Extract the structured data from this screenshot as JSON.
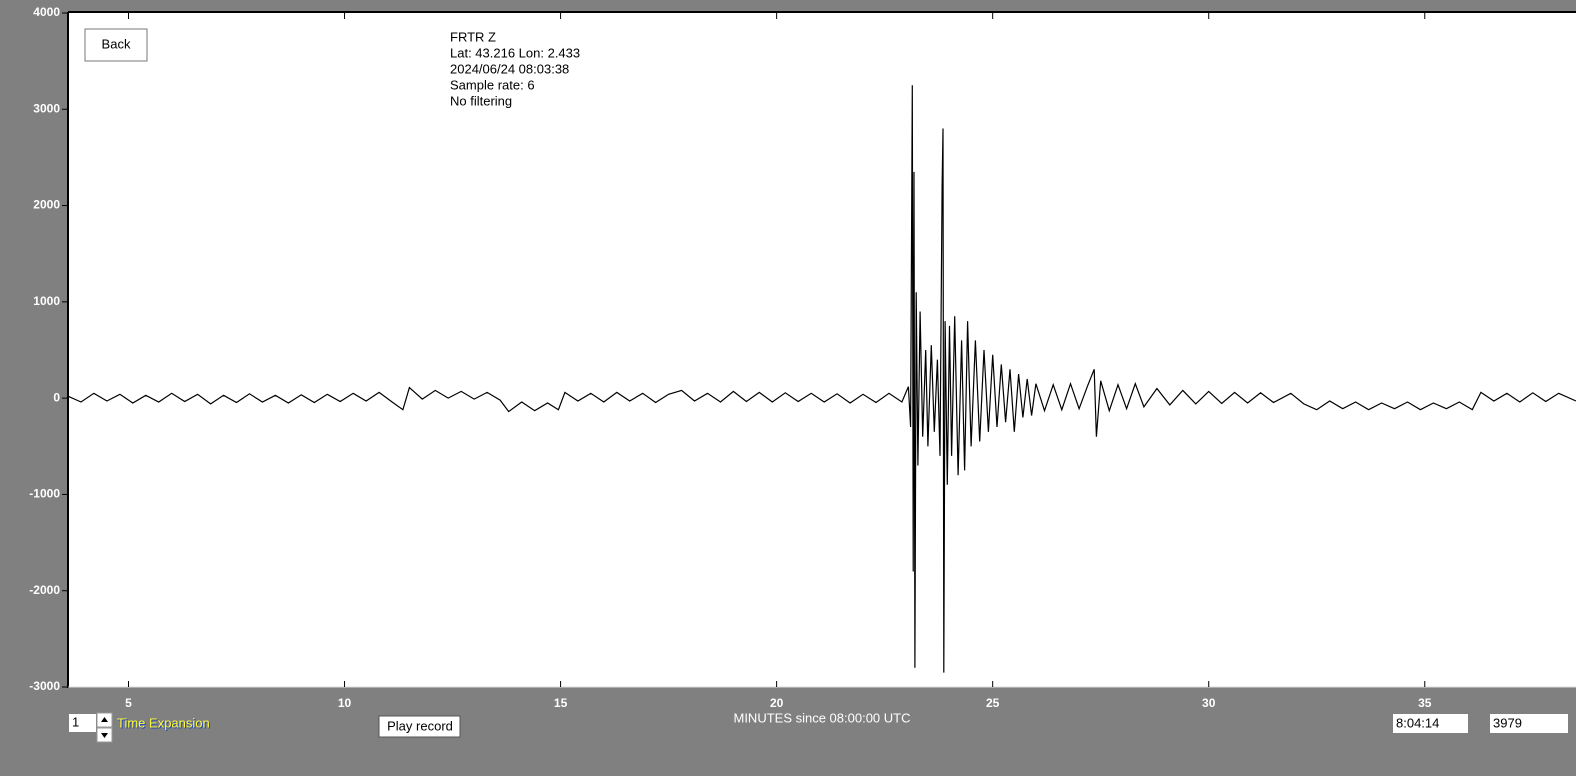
{
  "chart_data": {
    "type": "line",
    "x_label": "MINUTES since 08:00:00 UTC",
    "color": "#000000",
    "xlim": [
      3.6,
      38.5
    ],
    "xticks": [
      5,
      10,
      15,
      20,
      25,
      30,
      35
    ],
    "ylim": [
      -3000,
      4000
    ],
    "yticks": [
      4000,
      3000,
      2000,
      1000,
      0,
      -1000,
      -2000,
      -3000
    ],
    "x": [
      3.6,
      3.9,
      4.2,
      4.5,
      4.8,
      5.1,
      5.4,
      5.7,
      6.0,
      6.3,
      6.6,
      6.9,
      7.2,
      7.5,
      7.8,
      8.1,
      8.4,
      8.7,
      9.0,
      9.3,
      9.6,
      9.9,
      10.2,
      10.5,
      10.8,
      11.1,
      11.35,
      11.5,
      11.8,
      12.1,
      12.4,
      12.7,
      13.0,
      13.3,
      13.6,
      13.8,
      14.1,
      14.4,
      14.7,
      14.95,
      15.1,
      15.4,
      15.7,
      16.0,
      16.3,
      16.6,
      16.9,
      17.2,
      17.5,
      17.8,
      18.1,
      18.4,
      18.7,
      19.0,
      19.3,
      19.6,
      19.9,
      20.2,
      20.5,
      20.8,
      21.1,
      21.4,
      21.7,
      22.0,
      22.3,
      22.6,
      22.9,
      23.05,
      23.1,
      23.14,
      23.16,
      23.18,
      23.2,
      23.23,
      23.27,
      23.32,
      23.38,
      23.45,
      23.5,
      23.58,
      23.65,
      23.72,
      23.78,
      23.83,
      23.85,
      23.87,
      23.9,
      23.95,
      24.0,
      24.05,
      24.12,
      24.2,
      24.28,
      24.35,
      24.42,
      24.5,
      24.6,
      24.7,
      24.8,
      24.9,
      25.0,
      25.1,
      25.2,
      25.3,
      25.4,
      25.5,
      25.6,
      25.7,
      25.8,
      25.9,
      26.0,
      26.2,
      26.4,
      26.6,
      26.8,
      27.0,
      27.2,
      27.35,
      27.4,
      27.5,
      27.7,
      27.9,
      28.1,
      28.3,
      28.5,
      28.8,
      29.1,
      29.4,
      29.7,
      30.0,
      30.3,
      30.6,
      30.9,
      31.2,
      31.5,
      31.9,
      32.2,
      32.5,
      32.8,
      33.1,
      33.4,
      33.7,
      34.0,
      34.3,
      34.6,
      34.9,
      35.2,
      35.5,
      35.8,
      36.1,
      36.3,
      36.6,
      36.9,
      37.2,
      37.5,
      37.8,
      38.1,
      38.5
    ],
    "values": [
      20,
      -40,
      50,
      -30,
      40,
      -50,
      30,
      -40,
      50,
      -35,
      40,
      -60,
      30,
      -45,
      45,
      -40,
      30,
      -50,
      35,
      -45,
      40,
      -35,
      50,
      -30,
      60,
      -40,
      -120,
      110,
      -10,
      80,
      0,
      70,
      -10,
      60,
      -20,
      -140,
      -40,
      -130,
      -50,
      -120,
      60,
      -30,
      50,
      -40,
      60,
      -30,
      50,
      -45,
      40,
      80,
      -30,
      50,
      -40,
      70,
      -35,
      60,
      -40,
      55,
      -35,
      50,
      -40,
      45,
      -50,
      40,
      -45,
      50,
      -40,
      120,
      -300,
      3250,
      -1800,
      2350,
      -2800,
      1100,
      -700,
      900,
      -400,
      500,
      -500,
      550,
      -350,
      400,
      -600,
      2200,
      2800,
      -2850,
      800,
      -900,
      750,
      -600,
      850,
      -800,
      600,
      -750,
      800,
      -500,
      600,
      -450,
      500,
      -350,
      450,
      -300,
      350,
      -250,
      300,
      -350,
      250,
      -200,
      200,
      -180,
      150,
      -130,
      140,
      -120,
      150,
      -110,
      130,
      300,
      -400,
      180,
      -130,
      140,
      -110,
      150,
      -90,
      100,
      -70,
      80,
      -60,
      70,
      -55,
      60,
      -50,
      55,
      -45,
      50,
      -60,
      -120,
      -30,
      -110,
      -40,
      -120,
      -50,
      -110,
      -40,
      -120,
      -50,
      -110,
      -40,
      -120,
      60,
      -30,
      50,
      -40,
      55,
      -35,
      50,
      -30
    ]
  },
  "ui": {
    "back": "Back",
    "info": [
      "FRTR  Z",
      "Lat: 43.216 Lon: 2.433",
      "2024/06/24 08:03:38",
      "Sample rate: 6",
      "No filtering"
    ],
    "expansion_value": "1",
    "expansion_label": "Time Expansion",
    "play": "Play record",
    "time_box": "8:04:14",
    "count_box": "3979"
  }
}
